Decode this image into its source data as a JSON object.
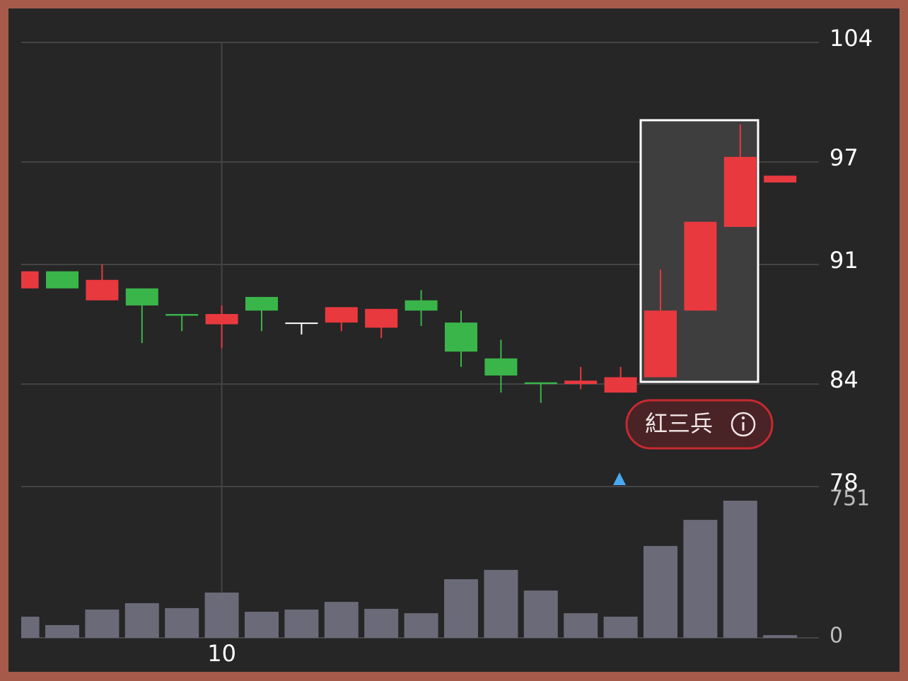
{
  "chart_data": {
    "type": "candlestick",
    "categories": [
      null,
      null,
      null,
      null,
      null,
      "10",
      null,
      null,
      null,
      null,
      null,
      null,
      null,
      null,
      null,
      null,
      null,
      null,
      null,
      null
    ],
    "open": [
      89.6,
      90.6,
      88.9,
      89.6,
      88.1,
      87.5,
      89.1,
      87.6,
      87.6,
      87.3,
      88.9,
      87.6,
      85.5,
      84.1,
      84.0,
      83.5,
      84.4,
      88.3,
      93.2,
      95.8
    ],
    "high": [
      90.6,
      90.6,
      91.0,
      89.6,
      88.1,
      88.6,
      89.1,
      87.6,
      88.5,
      88.4,
      89.5,
      88.3,
      86.6,
      84.1,
      85.0,
      85.0,
      90.7,
      93.5,
      99.2,
      96.2
    ],
    "low": [
      89.6,
      89.6,
      88.9,
      86.4,
      87.1,
      86.1,
      87.1,
      86.9,
      87.1,
      86.7,
      87.4,
      85.0,
      83.5,
      82.9,
      83.7,
      83.5,
      84.4,
      88.3,
      93.2,
      95.8
    ],
    "close": [
      90.6,
      89.6,
      90.1,
      88.6,
      88.0,
      88.1,
      88.3,
      87.6,
      88.5,
      88.4,
      88.3,
      85.9,
      84.5,
      84.0,
      84.2,
      84.4,
      88.3,
      93.5,
      97.3,
      96.2
    ],
    "up_color": "#e8393f",
    "down_color": "#3ab54a",
    "doji_color": "#ffffff",
    "ylim": [
      78,
      104
    ],
    "yticks": [
      104,
      97,
      91,
      84,
      78
    ],
    "grid": true,
    "volume": {
      "values": [
        116,
        70,
        155,
        190,
        163,
        248,
        143,
        155,
        197,
        159,
        135,
        321,
        372,
        259,
        135,
        116,
        503,
        646,
        751,
        15
      ],
      "color": "#6b6a78",
      "ylim": [
        0,
        751
      ],
      "yticks": [
        751,
        0
      ]
    },
    "annotation": "紅三兵"
  }
}
